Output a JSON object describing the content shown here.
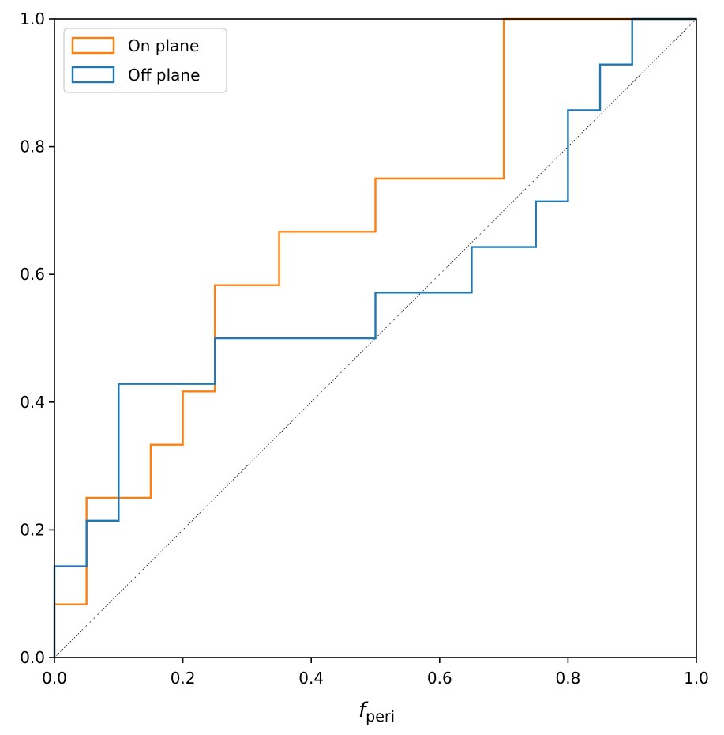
{
  "chart_data": {
    "type": "line",
    "subtype": "step-cdf",
    "title": "",
    "xlabel": {
      "main": "f",
      "sub": "peri"
    },
    "ylabel": "",
    "xlim": [
      0.0,
      1.0
    ],
    "ylim": [
      0.0,
      1.0
    ],
    "xticks": [
      0.0,
      0.2,
      0.4,
      0.6,
      0.8,
      1.0
    ],
    "yticks": [
      0.0,
      0.2,
      0.4,
      0.6,
      0.8,
      1.0
    ],
    "xtick_labels": [
      "0.0",
      "0.2",
      "0.4",
      "0.6",
      "0.8",
      "1.0"
    ],
    "ytick_labels": [
      "0.0",
      "0.2",
      "0.4",
      "0.6",
      "0.8",
      "1.0"
    ],
    "grid": false,
    "legend_position": "top-left",
    "reference_line": {
      "name": "diagonal",
      "style": "dotted",
      "color": "#000000",
      "x": [
        0.0,
        1.0
      ],
      "y": [
        0.0,
        1.0
      ]
    },
    "series": [
      {
        "name": "On plane",
        "color": "#ff7f0e",
        "x": [
          0.0,
          0.05,
          0.15,
          0.2,
          0.25,
          0.35,
          0.5,
          0.7,
          1.0
        ],
        "y": [
          0.0833,
          0.25,
          0.3333,
          0.4167,
          0.5833,
          0.6667,
          0.75,
          1.0,
          1.0
        ]
      },
      {
        "name": "Off plane",
        "color": "#1f77b4",
        "x": [
          0.0,
          0.05,
          0.1,
          0.25,
          0.5,
          0.65,
          0.75,
          0.8,
          0.85,
          0.9,
          1.0
        ],
        "y": [
          0.1429,
          0.2143,
          0.4286,
          0.5,
          0.5714,
          0.6429,
          0.7143,
          0.8571,
          0.9286,
          1.0,
          1.0
        ]
      }
    ]
  }
}
